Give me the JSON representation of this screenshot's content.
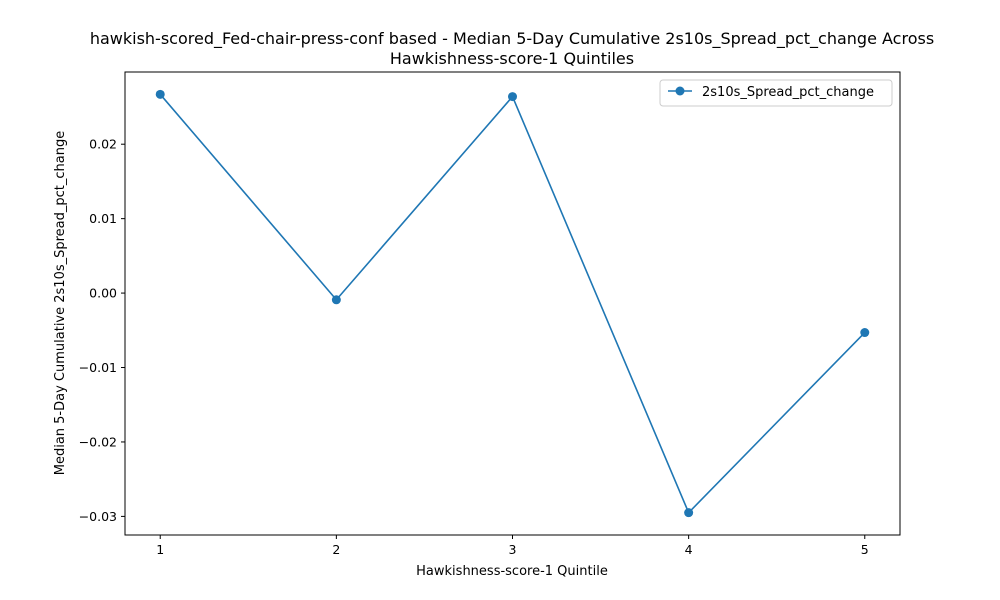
{
  "chart_data": {
    "type": "line",
    "title_line1": "hawkish-scored_Fed-chair-press-conf based - Median 5-Day Cumulative 2s10s_Spread_pct_change Across",
    "title_line2": "Hawkishness-score-1 Quintiles",
    "xlabel": "Hawkishness-score-1 Quintile",
    "ylabel": "Median 5-Day Cumulative 2s10s_Spread_pct_change",
    "x": [
      1,
      2,
      3,
      4,
      5
    ],
    "x_tick_labels": [
      "1",
      "2",
      "3",
      "4",
      "5"
    ],
    "y_ticks": [
      0.02,
      0.01,
      0.0,
      -0.01,
      -0.02,
      -0.03
    ],
    "y_tick_labels": [
      "0.02",
      "0.01",
      "0.00",
      "−0.01",
      "−0.02",
      "−0.03"
    ],
    "xlim": [
      0.8,
      5.2
    ],
    "ylim": [
      -0.0325,
      0.0297
    ],
    "series": [
      {
        "name": "2s10s_Spread_pct_change",
        "color": "#1f77b4",
        "values": [
          0.0267,
          -0.0009,
          0.0264,
          -0.0295,
          -0.0053
        ]
      }
    ],
    "legend_position": "upper right",
    "grid": false
  }
}
